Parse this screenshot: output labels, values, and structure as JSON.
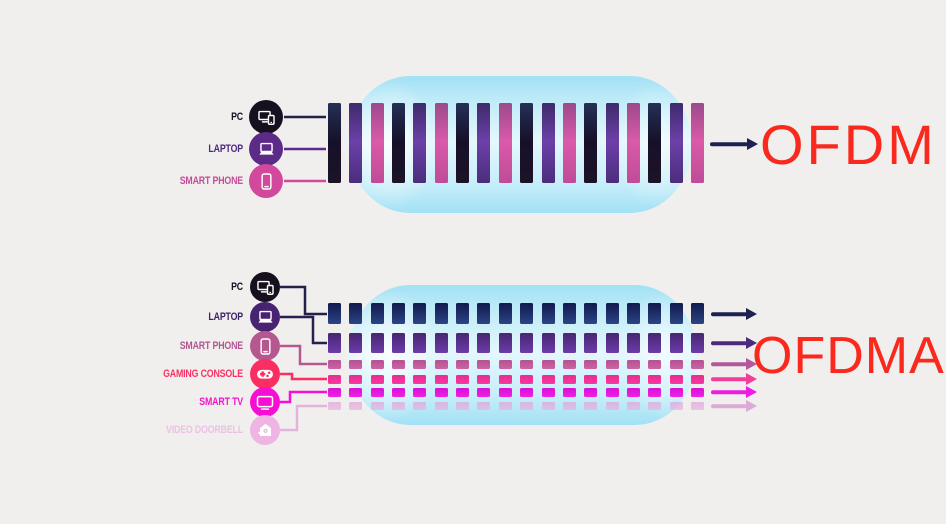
{
  "canvas_bg": "#f0efed",
  "pipe_color": "#b5e9f8",
  "title_color": "#fa291d",
  "top_section": {
    "title": "OFDM",
    "devices": [
      {
        "label": "PC",
        "icon": "pc-icon",
        "circle": "#17101f",
        "label_color": "#171022",
        "line": "#23204a",
        "bar_key": "dark"
      },
      {
        "label": "LAPTOP",
        "icon": "laptop-icon",
        "circle": "#5c2a87",
        "label_color": "#4f2a7f",
        "line": "#5c2a87",
        "bar_key": "purple"
      },
      {
        "label": "SMART PHONE",
        "icon": "smartphone-icon",
        "circle": "#d2489c",
        "label_color": "#c54b98",
        "line": "#d2489c",
        "bar_key": "pink"
      }
    ],
    "bar_count": 18,
    "bar_pattern": [
      "dark",
      "purple",
      "pink"
    ],
    "bar_colors": {
      "dark": [
        "#253056",
        "#16102a",
        "#1c1426"
      ],
      "purple": [
        "#3e2a6c",
        "#6c40a8",
        "#4b2d7c"
      ],
      "pink": [
        "#9c4a8c",
        "#d95aa8",
        "#c04b98"
      ]
    },
    "arrow_color": "#1c2150"
  },
  "bottom_section": {
    "title": "OFDMA",
    "columns": 18,
    "devices": [
      {
        "label": "PC",
        "icon": "pc-icon",
        "circle": "#17101f",
        "label_color": "#171022",
        "line": "#23204a",
        "row": [
          "#111a4e",
          "#2c4484"
        ],
        "arrow": "#1c2150",
        "row_opacity": 1
      },
      {
        "label": "LAPTOP",
        "icon": "laptop-icon",
        "circle": "#482371",
        "label_color": "#3f2366",
        "line": "#2a1e4e",
        "row": [
          "#472671",
          "#6d3ca9"
        ],
        "arrow": "#4c2b7e",
        "row_opacity": 1
      },
      {
        "label": "SMART PHONE",
        "icon": "smartphone-icon",
        "circle": "#b5588f",
        "label_color": "#b25691",
        "line": "#b5588f",
        "row": [
          "#b35290",
          "#cf63a6"
        ],
        "arrow": "#b2599c",
        "row_opacity": 1
      },
      {
        "label": "GAMING CONSOLE",
        "icon": "gamepad-icon",
        "circle": "#fb2e62",
        "label_color": "#fb3064",
        "line": "#fb2e62",
        "row": [
          "#e42d8d",
          "#fb37a3"
        ],
        "arrow": "#ef3f9b",
        "row_opacity": 1
      },
      {
        "label": "SMART TV",
        "icon": "tv-icon",
        "circle": "#f70ed4",
        "label_color": "#f414d0",
        "line": "#f70ed4",
        "row": [
          "#d512d2",
          "#f31fe8"
        ],
        "arrow": "#ee1ce2",
        "row_opacity": 1
      },
      {
        "label": "VIDEO DOORBELL",
        "icon": "doorbell-icon",
        "circle": "#efb4e4",
        "label_color": "#ecc2e2",
        "line": "#e3b4da",
        "row": [
          "#dfa3d8",
          "#e7b3e0"
        ],
        "arrow": "#dcaad6",
        "row_opacity": 0.72
      }
    ]
  }
}
